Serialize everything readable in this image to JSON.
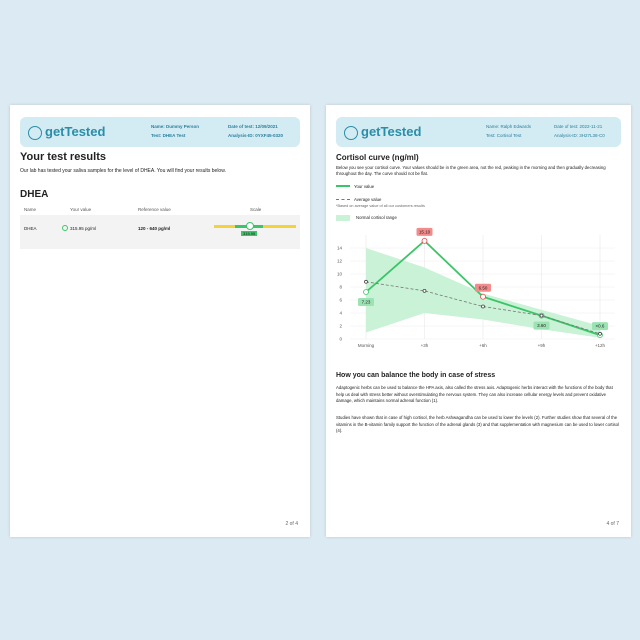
{
  "left_page": {
    "logo": "getTested",
    "header": {
      "name": "Name: Dummy Person",
      "test": "Test: DHEA Test",
      "date": "Date of test: 12/09/2021",
      "analysis": "Analysis-ID: 0YXF45-0320"
    },
    "title": "Your test results",
    "intro": "Our lab has tested your saliva samples for the level of DHEA. You will find your results below.",
    "section": "DHEA",
    "table": {
      "headers": [
        "Name",
        "Your value",
        "Reference value",
        "Scale"
      ],
      "rows": [
        [
          "DHEA",
          "315.95 pg/ml",
          "120 - 640 pg/ml",
          "315.95"
        ]
      ]
    },
    "page_number": "2 of 4"
  },
  "right_page": {
    "logo": "getTested",
    "header": {
      "name": "Name: Ralph Edwards",
      "test": "Test: Cortisol Test",
      "date": "Date of test: 2022-11-21",
      "analysis": "Analysis-ID: 3H27L38-C0"
    },
    "intro": "Below you see your cortisol curve. Your values should be in the green area, not the red, peaking in the morning and then gradually decreasing throughout the day. The curve should not be flat.",
    "footnote": "*Based on average value of all our customers results",
    "section": "How you can balance the body in case of stress",
    "paragraphs": [
      "Adaptogenic herbs can be used to balance the HPA axis, also called the stress axis. Adaptogenic herbs interact with the functions of the body that help us deal with stress better without overstimulating the nervous system. They can also increase cellular energy levels and prevent oxidative damage, which maintains normal adrenal function (1).",
      "Studies have shown that in case of high cortisol, the herb Ashwagandha can be used to lower the levels (2). Further studies show that several of the vitamins in the B-vitamin family support the function of the adrenal glands (3) and that supplementation with magnesium can be used to lower cortisol (4)."
    ],
    "page_number": "4 of 7"
  },
  "chart_data": {
    "type": "line",
    "title": "Cortisol curve (ng/ml)",
    "categories": [
      "Morning",
      "+3h",
      "+6h",
      "+9h",
      "+12h"
    ],
    "ylim": [
      0,
      16
    ],
    "yticks": [
      0,
      2,
      4,
      6,
      8,
      10,
      12,
      14
    ],
    "series": [
      {
        "name": "Your value",
        "color": "#3cc468",
        "values": [
          7.23,
          15.1,
          6.5,
          3.6,
          0.6
        ],
        "value_labels": [
          "7.23",
          "15.10",
          "6.50",
          "3.60",
          "<0.6"
        ]
      },
      {
        "name": "Average value",
        "color": "#777777",
        "values": [
          8.8,
          7.4,
          5,
          3.6,
          0.8
        ]
      }
    ],
    "band": {
      "name": "Normal cortisol range",
      "color": "#c9f2d6",
      "lower": [
        1,
        4,
        3,
        1.5,
        0.2
      ],
      "upper": [
        14,
        11,
        7,
        4.5,
        2
      ]
    }
  }
}
